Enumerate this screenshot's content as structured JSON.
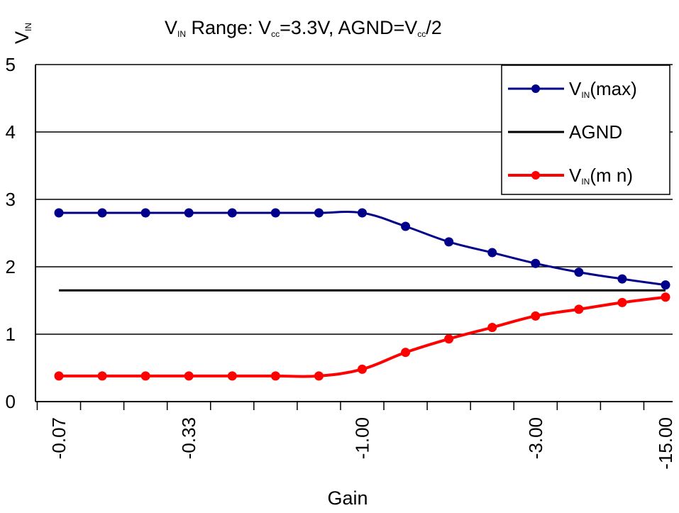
{
  "chart_data": {
    "type": "line",
    "title": {
      "prefix": "V",
      "prefix_sub": "IN",
      "middle": " Range:  V",
      "cc_sub": "cc",
      "rest1": "=3.3V, AGND=V",
      "cc_sub2": "cc",
      "rest2": "/2"
    },
    "ylabel": {
      "main": "V",
      "sub": "IN"
    },
    "xlabel": "Gain",
    "ylim": [
      0,
      5
    ],
    "yticks": [
      "0",
      "1",
      "2",
      "3",
      "4",
      "5"
    ],
    "grid": true,
    "legend_position": "top-right",
    "x_tick_labels": [
      {
        "index": 0,
        "label": "-0.07"
      },
      {
        "index": 3,
        "label": "-0.33"
      },
      {
        "index": 7,
        "label": "-1.00"
      },
      {
        "index": 11,
        "label": "-3.00"
      },
      {
        "index": 14,
        "label": "-15.00"
      }
    ],
    "n_points": 15,
    "series": [
      {
        "name": {
          "main": "V",
          "sub": "IN",
          "suffix": "(max)"
        },
        "color": "#00008b",
        "markers": true,
        "values": [
          2.8,
          2.8,
          2.8,
          2.8,
          2.8,
          2.8,
          2.8,
          2.8,
          2.6,
          2.37,
          2.21,
          2.05,
          1.92,
          1.82,
          1.73
        ]
      },
      {
        "name": {
          "main": "AGND",
          "sub": "",
          "suffix": ""
        },
        "color": "#000000",
        "markers": false,
        "values": [
          1.65,
          1.65,
          1.65,
          1.65,
          1.65,
          1.65,
          1.65,
          1.65,
          1.65,
          1.65,
          1.65,
          1.65,
          1.65,
          1.65,
          1.65
        ]
      },
      {
        "name": {
          "main": "V",
          "sub": "IN",
          "suffix": "(m n)"
        },
        "color": "#ff0000",
        "markers": true,
        "values": [
          0.38,
          0.38,
          0.38,
          0.38,
          0.38,
          0.38,
          0.38,
          0.48,
          0.73,
          0.93,
          1.1,
          1.27,
          1.37,
          1.47,
          1.55
        ]
      }
    ]
  }
}
